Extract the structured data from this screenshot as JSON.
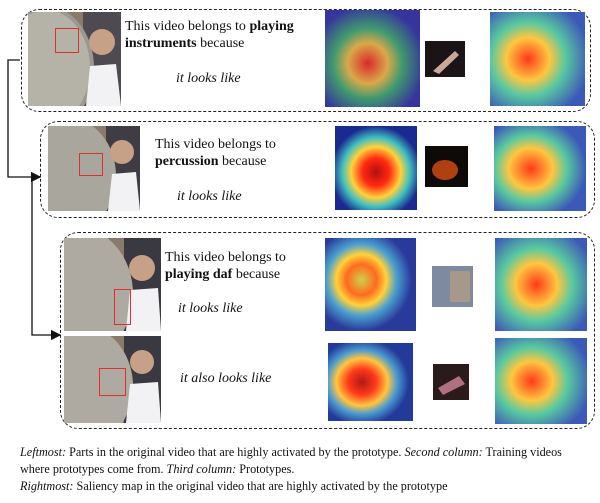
{
  "rows": [
    {
      "text_before": "This video belongs to ",
      "class_bold": "playing instruments",
      "text_after": " because",
      "looks": "it looks like"
    },
    {
      "text_before": "This video belongs to ",
      "class_bold": "percussion",
      "text_after": " because",
      "looks": "it looks like"
    },
    {
      "text_before": "This video belongs to ",
      "class_bold": "playing daf",
      "text_after": " because",
      "looks": "it looks like"
    },
    {
      "text_before": "",
      "class_bold": "",
      "text_after": "",
      "looks": "it also looks like"
    }
  ],
  "caption": {
    "leftmost_label": "Leftmost:",
    "leftmost_text": " Parts in the original video that are highly activated by the prototype. ",
    "second_label": "Second column:",
    "second_text": " Training videos where prototypes come from. ",
    "third_label": "Third column:",
    "third_text": " Prototypes.",
    "rightmost_label": "Rightmost:",
    "rightmost_text": " Saliency map in the original video that are highly activated by the prototype"
  },
  "colors": {
    "red_box": "#e0302a",
    "dashed_border": "#222222"
  }
}
